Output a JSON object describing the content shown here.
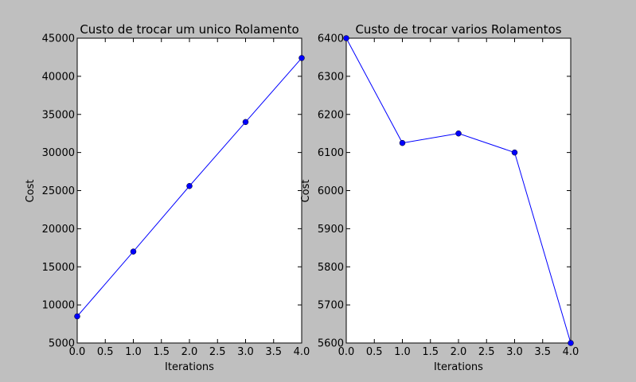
{
  "chart_data": [
    {
      "type": "line",
      "title": "Custo de trocar um unico Rolamento",
      "xlabel": "Iterations",
      "ylabel": "Cost",
      "x": [
        0,
        1,
        2,
        3,
        4
      ],
      "series": [
        {
          "values": [
            8500,
            17000,
            25600,
            34000,
            42400
          ]
        }
      ],
      "xlim": [
        0,
        4
      ],
      "ylim": [
        5000,
        45000
      ],
      "xticks": [
        "0.0",
        "0.5",
        "1.0",
        "1.5",
        "2.0",
        "2.5",
        "3.0",
        "3.5",
        "4.0"
      ],
      "yticks": [
        "5000",
        "10000",
        "15000",
        "20000",
        "25000",
        "30000",
        "35000",
        "40000",
        "45000"
      ],
      "grid": false,
      "color": "#0000ff"
    },
    {
      "type": "line",
      "title": "Custo de trocar varios Rolamentos",
      "xlabel": "Iterations",
      "ylabel": "Cost",
      "x": [
        0,
        1,
        2,
        3,
        4
      ],
      "series": [
        {
          "values": [
            6400,
            6125,
            6150,
            6100,
            5600
          ]
        }
      ],
      "xlim": [
        0,
        4
      ],
      "ylim": [
        5600,
        6400
      ],
      "xticks": [
        "0.0",
        "0.5",
        "1.0",
        "1.5",
        "2.0",
        "2.5",
        "3.0",
        "3.5",
        "4.0"
      ],
      "yticks": [
        "5600",
        "5700",
        "5800",
        "5900",
        "6000",
        "6100",
        "6200",
        "6300",
        "6400"
      ],
      "grid": false,
      "color": "#0000ff"
    }
  ]
}
